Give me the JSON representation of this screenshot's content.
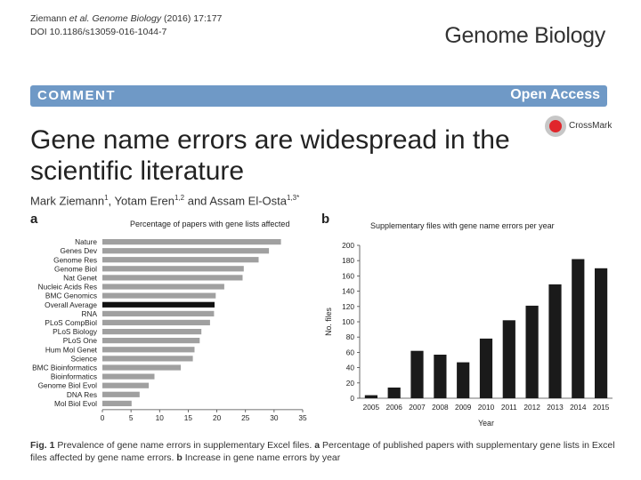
{
  "header": {
    "citation_authors": "Ziemann ",
    "citation_etal": "et al. Genome Biology",
    "citation_issue": " (2016) 17:177",
    "doi": "DOI 10.1186/s13059-016-1044-7",
    "journal": "Genome Biology"
  },
  "banner": {
    "type": "COMMENT",
    "access": "Open Access"
  },
  "crossmark": {
    "label": "CrossMark"
  },
  "article": {
    "title": "Gene name errors are widespread in the scientific literature",
    "authors": [
      {
        "name": "Mark Ziemann",
        "sup": "1",
        "sep": ", "
      },
      {
        "name": "Yotam Eren",
        "sup": "1,2",
        "sep": " and "
      },
      {
        "name": "Assam El-Osta",
        "sup": "1,3*",
        "sep": ""
      }
    ]
  },
  "figure": {
    "panel_a_letter": "a",
    "panel_b_letter": "b",
    "caption": {
      "fig_label": "Fig. 1",
      "intro": " Prevalence of gene name errors in supplementary Excel files. ",
      "a_label": "a",
      "a_text": " Percentage of published papers with supplementary gene lists in Excel files affected by gene name errors. ",
      "b_label": "b",
      "b_text": " Increase in gene name errors by year"
    }
  },
  "chart_data": [
    {
      "type": "bar",
      "orientation": "horizontal",
      "title": "Percentage of papers with gene lists affected",
      "xlabel": "",
      "ylabel": "",
      "categories": [
        "Nature",
        "Genes Dev",
        "Genome Res",
        "Genome Biol",
        "Nat Genet",
        "Nucleic Acids Res",
        "BMC Genomics",
        "Overall Average",
        "RNA",
        "PLoS CompBiol",
        "PLoS Biology",
        "PLoS One",
        "Hum Mol Genet",
        "Science",
        "BMC Bioinformatics",
        "Bioinformatics",
        "Genome Biol Evol",
        "DNA Res",
        "Mol Biol Evol"
      ],
      "values": [
        31.2,
        29.1,
        27.3,
        24.7,
        24.5,
        21.3,
        19.8,
        19.6,
        19.5,
        18.8,
        17.3,
        17.0,
        16.1,
        15.8,
        13.7,
        9.1,
        8.1,
        6.5,
        5.1
      ],
      "highlight": "Overall Average",
      "colors": {
        "bar": "#a0a0a0",
        "highlight": "#111111"
      },
      "xlim": [
        0,
        35
      ],
      "xticks": [
        0,
        5,
        10,
        15,
        20,
        25,
        30,
        35
      ],
      "grid": false
    },
    {
      "type": "bar",
      "title": "Supplementary files with gene name errors per year",
      "xlabel": "Year",
      "ylabel": "No. files",
      "categories": [
        "2005",
        "2006",
        "2007",
        "2008",
        "2009",
        "2010",
        "2011",
        "2012",
        "2013",
        "2014",
        "2015"
      ],
      "values": [
        4,
        14,
        62,
        57,
        47,
        78,
        102,
        121,
        149,
        182,
        170
      ],
      "colors": {
        "bar": "#1a1a1a"
      },
      "ylim": [
        0,
        200
      ],
      "yticks": [
        0,
        20,
        40,
        60,
        80,
        100,
        120,
        140,
        160,
        180,
        200
      ],
      "grid": false
    }
  ]
}
